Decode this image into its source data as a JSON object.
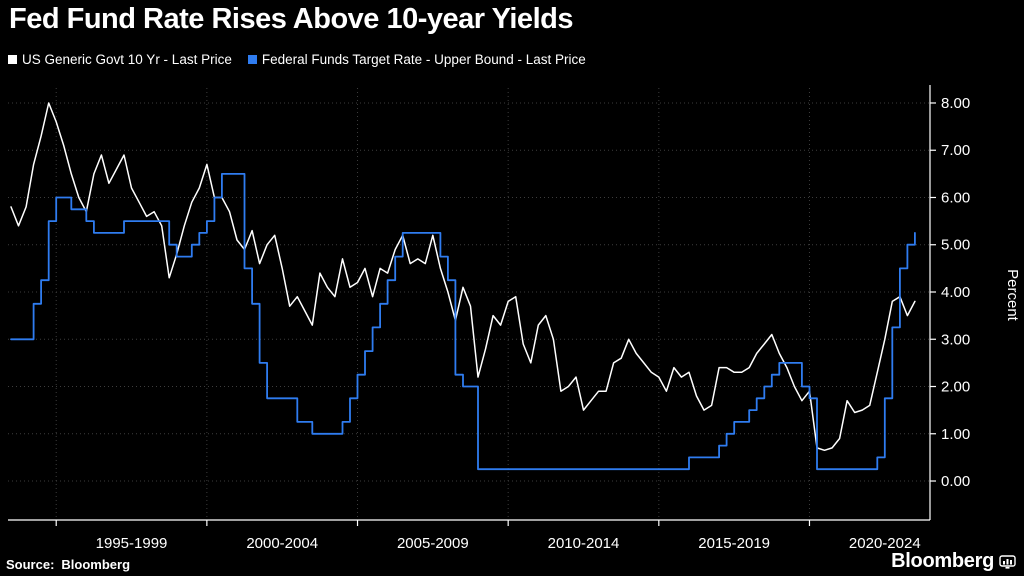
{
  "page": {
    "title": "Fed Fund Rate Rises Above 10-year Yields",
    "source_label": "Source:",
    "source_value": "Bloomberg",
    "brand": "Bloomberg"
  },
  "legend": [
    {
      "label": "US Generic Govt 10 Yr - Last Price",
      "color": "#ffffff"
    },
    {
      "label": "Federal Funds Target Rate - Upper Bound - Last Price",
      "color": "#2f7cf0"
    }
  ],
  "chart_data": {
    "type": "line",
    "title": "Fed Fund Rate Rises Above 10-year Yields",
    "xlabel": "",
    "ylabel": "Percent",
    "ylim": [
      0,
      8
    ],
    "xlim": [
      1993.4,
      2024.0
    ],
    "grid": "dotted",
    "legend_position": "top-left",
    "background": "#000000",
    "yticks": [
      "0.00",
      "1.00",
      "2.00",
      "3.00",
      "4.00",
      "5.00",
      "6.00",
      "7.00",
      "8.00"
    ],
    "ytick_values": [
      0,
      1,
      2,
      3,
      4,
      5,
      6,
      7,
      8
    ],
    "x_labels": [
      "1995-1999",
      "2000-2004",
      "2005-2009",
      "2010-2014",
      "2015-2019",
      "2020-2024"
    ],
    "x_boundaries": [
      1995,
      2000,
      2005,
      2010,
      2015,
      2020
    ],
    "x_unit": "year",
    "x": [
      1993.5,
      1993.75,
      1994.0,
      1994.25,
      1994.5,
      1994.75,
      1995.0,
      1995.25,
      1995.5,
      1995.75,
      1996.0,
      1996.25,
      1996.5,
      1996.75,
      1997.0,
      1997.25,
      1997.5,
      1997.75,
      1998.0,
      1998.25,
      1998.5,
      1998.75,
      1999.0,
      1999.25,
      1999.5,
      1999.75,
      2000.0,
      2000.25,
      2000.5,
      2000.75,
      2001.0,
      2001.25,
      2001.5,
      2001.75,
      2002.0,
      2002.25,
      2002.5,
      2002.75,
      2003.0,
      2003.25,
      2003.5,
      2003.75,
      2004.0,
      2004.25,
      2004.5,
      2004.75,
      2005.0,
      2005.25,
      2005.5,
      2005.75,
      2006.0,
      2006.25,
      2006.5,
      2006.75,
      2007.0,
      2007.25,
      2007.5,
      2007.75,
      2008.0,
      2008.25,
      2008.5,
      2008.75,
      2009.0,
      2009.25,
      2009.5,
      2009.75,
      2010.0,
      2010.25,
      2010.5,
      2010.75,
      2011.0,
      2011.25,
      2011.5,
      2011.75,
      2012.0,
      2012.25,
      2012.5,
      2012.75,
      2013.0,
      2013.25,
      2013.5,
      2013.75,
      2014.0,
      2014.25,
      2014.5,
      2014.75,
      2015.0,
      2015.25,
      2015.5,
      2015.75,
      2016.0,
      2016.25,
      2016.5,
      2016.75,
      2017.0,
      2017.25,
      2017.5,
      2017.75,
      2018.0,
      2018.25,
      2018.5,
      2018.75,
      2019.0,
      2019.25,
      2019.5,
      2019.75,
      2020.0,
      2020.25,
      2020.5,
      2020.75,
      2021.0,
      2021.25,
      2021.5,
      2021.75,
      2022.0,
      2022.25,
      2022.5,
      2022.75,
      2023.0,
      2023.25,
      2023.5
    ],
    "series": [
      {
        "name": "US Generic Govt 10 Yr - Last Price",
        "color": "#ffffff",
        "style": "linear",
        "values": [
          5.8,
          5.4,
          5.8,
          6.7,
          7.3,
          8.0,
          7.6,
          7.1,
          6.5,
          6.0,
          5.7,
          6.5,
          6.9,
          6.3,
          6.6,
          6.9,
          6.2,
          5.9,
          5.6,
          5.7,
          5.4,
          4.3,
          4.8,
          5.4,
          5.9,
          6.2,
          6.7,
          6.0,
          6.0,
          5.7,
          5.1,
          4.9,
          5.3,
          4.6,
          5.0,
          5.2,
          4.5,
          3.7,
          3.9,
          3.6,
          3.3,
          4.4,
          4.1,
          3.9,
          4.7,
          4.1,
          4.2,
          4.5,
          3.9,
          4.5,
          4.4,
          4.9,
          5.2,
          4.6,
          4.7,
          4.6,
          5.2,
          4.5,
          4.0,
          3.4,
          4.1,
          3.7,
          2.2,
          2.8,
          3.5,
          3.3,
          3.8,
          3.9,
          2.9,
          2.5,
          3.3,
          3.5,
          3.0,
          1.9,
          2.0,
          2.2,
          1.5,
          1.7,
          1.9,
          1.9,
          2.5,
          2.6,
          3.0,
          2.7,
          2.5,
          2.3,
          2.2,
          1.9,
          2.4,
          2.2,
          2.3,
          1.8,
          1.5,
          1.6,
          2.4,
          2.4,
          2.3,
          2.3,
          2.4,
          2.7,
          2.9,
          3.1,
          2.7,
          2.4,
          2.0,
          1.7,
          1.9,
          0.7,
          0.65,
          0.7,
          0.9,
          1.7,
          1.45,
          1.5,
          1.6,
          2.3,
          3.0,
          3.8,
          3.9,
          3.5,
          3.8
        ]
      },
      {
        "name": "Federal Funds Target Rate - Upper Bound - Last Price",
        "color": "#2f7cf0",
        "style": "step",
        "values": [
          3.0,
          3.0,
          3.0,
          3.75,
          4.25,
          5.5,
          6.0,
          6.0,
          5.75,
          5.75,
          5.5,
          5.25,
          5.25,
          5.25,
          5.25,
          5.5,
          5.5,
          5.5,
          5.5,
          5.5,
          5.5,
          5.0,
          4.75,
          4.75,
          5.0,
          5.25,
          5.5,
          6.0,
          6.5,
          6.5,
          6.5,
          4.5,
          3.75,
          2.5,
          1.75,
          1.75,
          1.75,
          1.75,
          1.25,
          1.25,
          1.0,
          1.0,
          1.0,
          1.0,
          1.25,
          1.75,
          2.25,
          2.75,
          3.25,
          3.75,
          4.25,
          4.75,
          5.25,
          5.25,
          5.25,
          5.25,
          5.25,
          4.75,
          4.25,
          2.25,
          2.0,
          2.0,
          0.25,
          0.25,
          0.25,
          0.25,
          0.25,
          0.25,
          0.25,
          0.25,
          0.25,
          0.25,
          0.25,
          0.25,
          0.25,
          0.25,
          0.25,
          0.25,
          0.25,
          0.25,
          0.25,
          0.25,
          0.25,
          0.25,
          0.25,
          0.25,
          0.25,
          0.25,
          0.25,
          0.25,
          0.5,
          0.5,
          0.5,
          0.5,
          0.75,
          1.0,
          1.25,
          1.25,
          1.5,
          1.75,
          2.0,
          2.25,
          2.5,
          2.5,
          2.5,
          2.0,
          1.75,
          0.25,
          0.25,
          0.25,
          0.25,
          0.25,
          0.25,
          0.25,
          0.25,
          0.5,
          1.75,
          3.25,
          4.5,
          5.0,
          5.25
        ]
      }
    ]
  }
}
